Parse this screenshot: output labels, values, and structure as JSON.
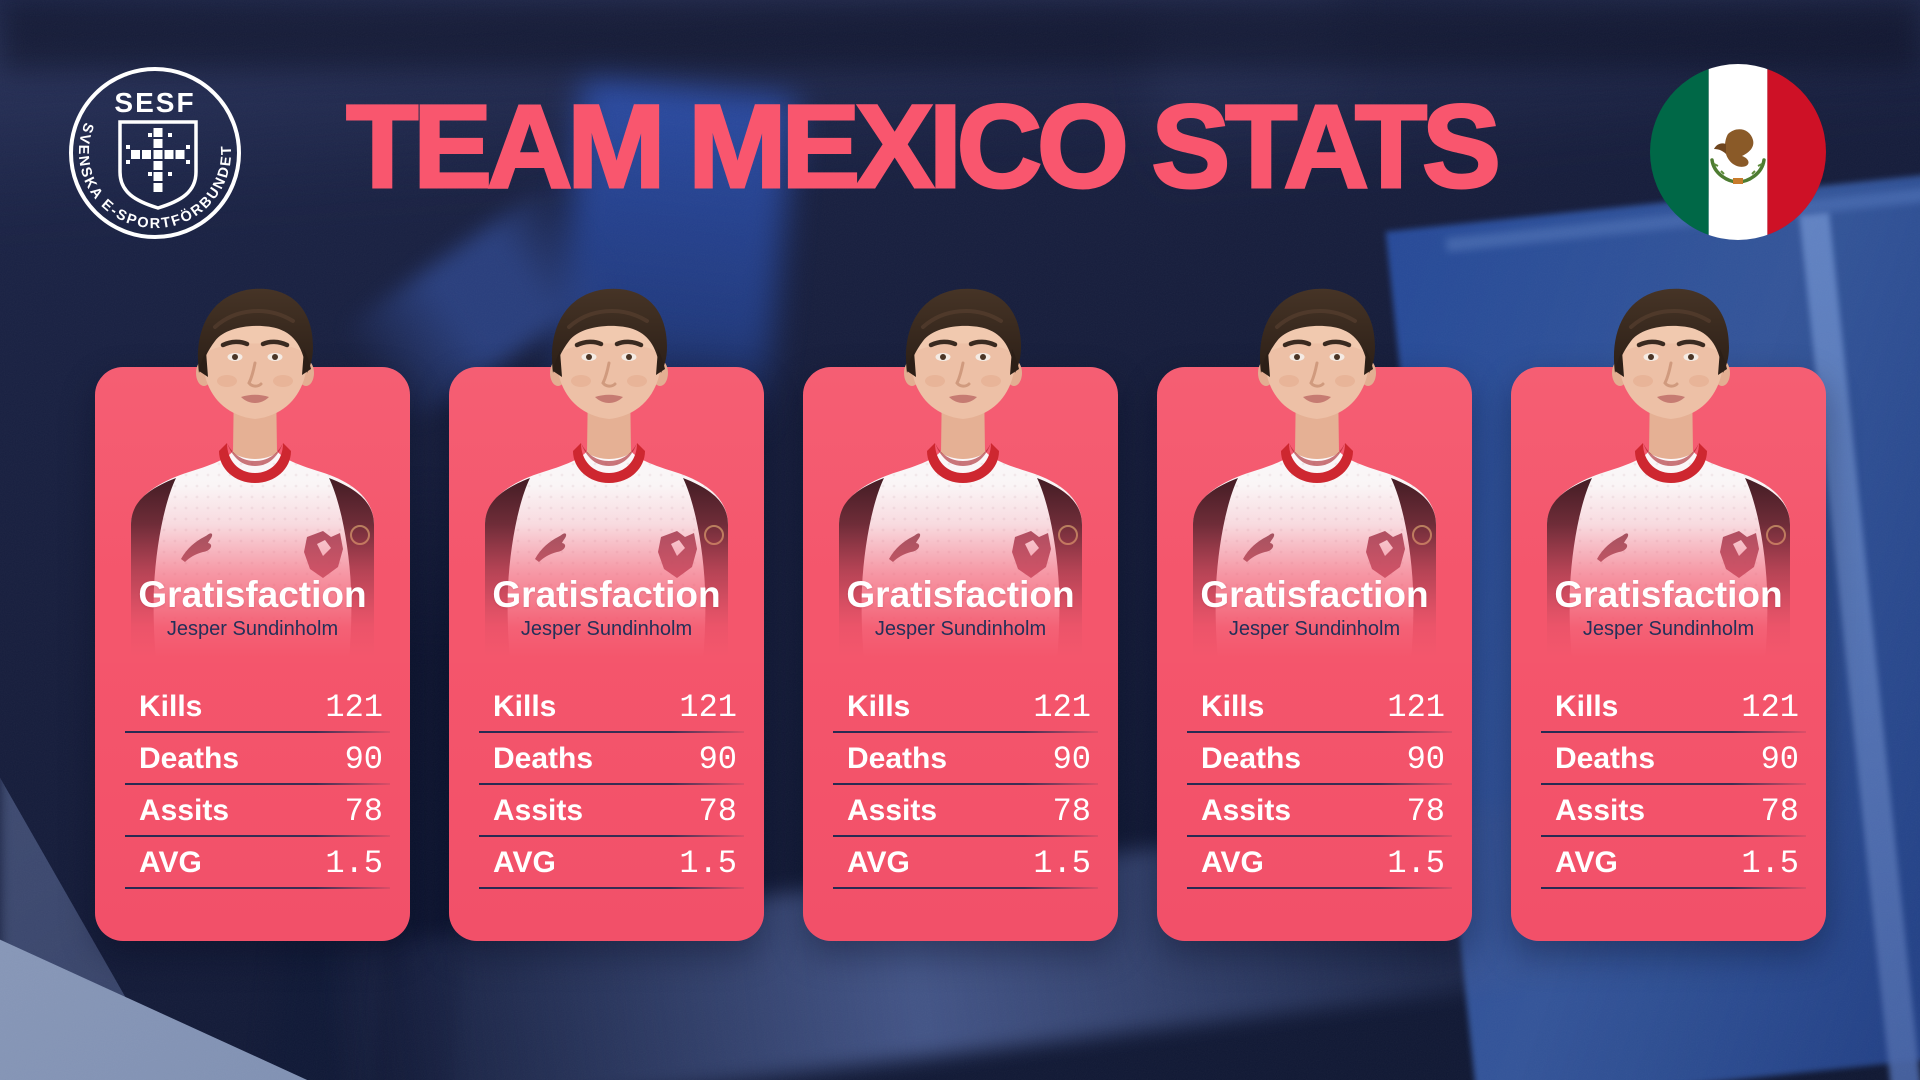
{
  "header": {
    "title": "TEAM MEXICO STATS",
    "org_logo": {
      "acronym": "SESF",
      "ring_text": "SVENSKA E-SPORTFÖRBUNDET"
    },
    "flag": {
      "country": "Mexico"
    }
  },
  "colors": {
    "title_pink": "#F9566E",
    "card_pink": "#F4566C",
    "navy_text": "#243059",
    "flag_green": "#006847",
    "flag_red": "#CE1126",
    "background_navy": "#161D3C"
  },
  "cards": [
    {
      "nickname": "Gratisfaction",
      "real_name": "Jesper Sundinholm",
      "stats": [
        {
          "label": "Kills",
          "value": "121"
        },
        {
          "label": "Deaths",
          "value": "90"
        },
        {
          "label": "Assits",
          "value": "78"
        },
        {
          "label": "AVG",
          "value": "1.5"
        }
      ]
    },
    {
      "nickname": "Gratisfaction",
      "real_name": "Jesper Sundinholm",
      "stats": [
        {
          "label": "Kills",
          "value": "121"
        },
        {
          "label": "Deaths",
          "value": "90"
        },
        {
          "label": "Assits",
          "value": "78"
        },
        {
          "label": "AVG",
          "value": "1.5"
        }
      ]
    },
    {
      "nickname": "Gratisfaction",
      "real_name": "Jesper Sundinholm",
      "stats": [
        {
          "label": "Kills",
          "value": "121"
        },
        {
          "label": "Deaths",
          "value": "90"
        },
        {
          "label": "Assits",
          "value": "78"
        },
        {
          "label": "AVG",
          "value": "1.5"
        }
      ]
    },
    {
      "nickname": "Gratisfaction",
      "real_name": "Jesper Sundinholm",
      "stats": [
        {
          "label": "Kills",
          "value": "121"
        },
        {
          "label": "Deaths",
          "value": "90"
        },
        {
          "label": "Assits",
          "value": "78"
        },
        {
          "label": "AVG",
          "value": "1.5"
        }
      ]
    },
    {
      "nickname": "Gratisfaction",
      "real_name": "Jesper Sundinholm",
      "stats": [
        {
          "label": "Kills",
          "value": "121"
        },
        {
          "label": "Deaths",
          "value": "90"
        },
        {
          "label": "Assits",
          "value": "78"
        },
        {
          "label": "AVG",
          "value": "1.5"
        }
      ]
    }
  ]
}
